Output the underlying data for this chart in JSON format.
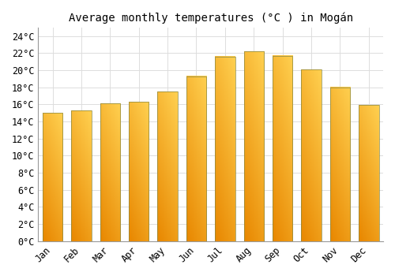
{
  "title": "Average monthly temperatures (°C ) in Mogán",
  "months": [
    "Jan",
    "Feb",
    "Mar",
    "Apr",
    "May",
    "Jun",
    "Jul",
    "Aug",
    "Sep",
    "Oct",
    "Nov",
    "Dec"
  ],
  "values": [
    15.0,
    15.3,
    16.1,
    16.3,
    17.5,
    19.3,
    21.6,
    22.2,
    21.7,
    20.1,
    18.0,
    15.9
  ],
  "bar_color_light": "#FFD04C",
  "bar_color_dark": "#E87800",
  "ylim": [
    0,
    25
  ],
  "yticks": [
    0,
    2,
    4,
    6,
    8,
    10,
    12,
    14,
    16,
    18,
    20,
    22,
    24
  ],
  "background_color": "#FFFFFF",
  "grid_color": "#DDDDDD",
  "title_fontsize": 10,
  "tick_fontsize": 8.5,
  "font_family": "monospace",
  "bar_width": 0.7,
  "bar_edge_color": "#888844",
  "bar_edge_width": 0.5
}
